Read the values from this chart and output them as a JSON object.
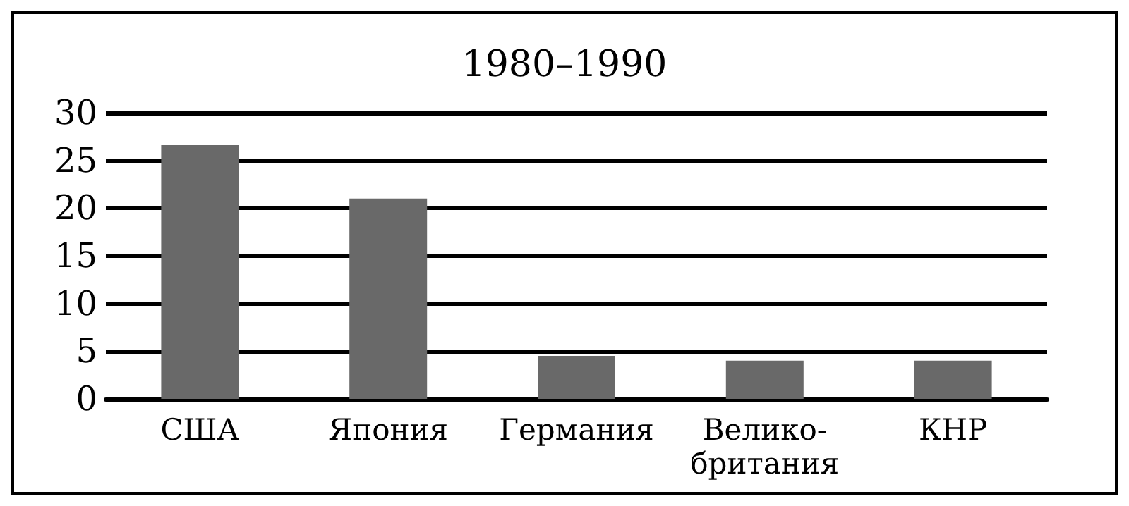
{
  "chart_data": {
    "type": "bar",
    "title": "1980–1990",
    "categories": [
      "США",
      "Япония",
      "Германия",
      "Велико-\nбритания",
      "КНР"
    ],
    "values": [
      26.6,
      21.0,
      4.5,
      4.0,
      4.0
    ],
    "color": "#696969",
    "ylim": [
      0,
      30
    ],
    "yticks": [
      0,
      5,
      10,
      15,
      20,
      25,
      30
    ],
    "grid": "y"
  }
}
